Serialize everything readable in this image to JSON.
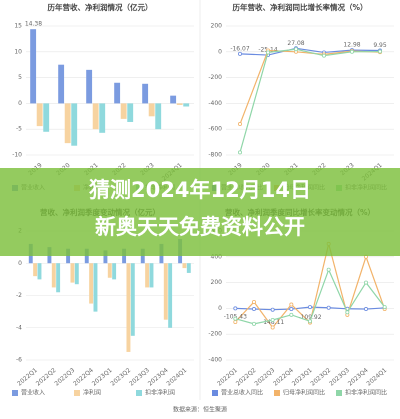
{
  "chart_data": [
    {
      "type": "bar",
      "title": "历年营收、净利润情况（亿元）",
      "categories": [
        "2019",
        "2020",
        "2021",
        "2022",
        "2023",
        "2024Q1"
      ],
      "series": [
        {
          "name": "营业收入",
          "color": "#7b9be0",
          "values": [
            14.38,
            7.5,
            6.5,
            4,
            3.8,
            1.5
          ],
          "value_labels": [
            "14.38",
            null,
            null,
            null,
            null,
            null
          ]
        },
        {
          "name": "净利润",
          "color": "#f7d3a0",
          "values": [
            -4.4,
            -7.7,
            -5,
            -3,
            -2.5,
            -0.3
          ]
        },
        {
          "name": "扣非净利润",
          "color": "#8fd9dd",
          "values": [
            -5.5,
            -8.2,
            -5.7,
            -3.6,
            -5,
            -0.6
          ]
        }
      ],
      "ylim": [
        -10,
        15
      ],
      "yticks": [
        15,
        10,
        5,
        0,
        -5,
        -10
      ],
      "grid": true
    },
    {
      "type": "line",
      "title": "历年营收、净利润同比增长率情况（%）",
      "categories": [
        "2019",
        "2020",
        "2021",
        "2022",
        "2023",
        "2024Q1"
      ],
      "series": [
        {
          "name": "营业总收入同比",
          "color": "#6a8be0",
          "values": [
            -16.07,
            -25.14,
            27.08,
            -5,
            12.98,
            9.95
          ],
          "value_labels": [
            "-16.07",
            "-25.14",
            "27.08",
            null,
            "12.98",
            "9.95"
          ]
        },
        {
          "name": "归母净利润同比",
          "color": "#f2b36a",
          "values": [
            -560,
            10,
            0,
            -20,
            5,
            -3
          ]
        },
        {
          "name": "扣非净利润同比",
          "color": "#8fd6a8",
          "values": [
            -780,
            -5,
            20,
            -30,
            0,
            2
          ]
        }
      ],
      "ylim": [
        -800,
        200
      ],
      "yticks": [
        200,
        0,
        -200,
        -400,
        -600,
        -800
      ],
      "grid": true
    },
    {
      "type": "bar",
      "title": "营收、净利润季度变动情况（亿元）",
      "categories": [
        "2022Q1",
        "2022Q2",
        "2022Q3",
        "2022Q4",
        "2023Q1",
        "2023Q2",
        "2023Q3",
        "2023Q4",
        "2024Q1"
      ],
      "series": [
        {
          "name": "营业收入",
          "color": "#7b9be0",
          "values": [
            1.2,
            1,
            0.9,
            0.9,
            0.8,
            0.9,
            0.9,
            1.2,
            1.5
          ]
        },
        {
          "name": "净利润",
          "color": "#f7d3a0",
          "values": [
            -0.8,
            -1.5,
            -1.2,
            -2.5,
            -0.9,
            -5.5,
            -1.5,
            -3.5,
            -0.3
          ]
        },
        {
          "name": "扣非净利润",
          "color": "#8fd9dd",
          "values": [
            -1,
            -1.8,
            -1.3,
            -3,
            -1,
            -4.5,
            -1.5,
            -4,
            -0.6
          ]
        }
      ],
      "ylim": [
        -6,
        2
      ],
      "yticks": [
        2,
        0,
        -2,
        -4,
        -6
      ],
      "grid": true
    },
    {
      "type": "line",
      "title": "营收、净利润季度同比增长率变动情况（%）",
      "categories": [
        "2022Q1",
        "2022Q2",
        "2022Q3",
        "2022Q4",
        "2023Q1",
        "2023Q2",
        "2023Q3",
        "2023Q4",
        "2024Q1"
      ],
      "series": [
        {
          "name": "营业总收入同比",
          "color": "#6a8be0",
          "values": [
            0,
            -5,
            -10,
            -5,
            10,
            5,
            -3,
            -5,
            4
          ]
        },
        {
          "name": "归母净利润同比",
          "color": "#f2b36a",
          "values": [
            -105.43,
            50,
            -148.11,
            30,
            -109.92,
            500,
            -50,
            400,
            -5
          ],
          "value_labels": [
            "-105.43",
            null,
            "-148.11",
            null,
            "-109.92",
            null,
            null,
            null,
            null
          ]
        },
        {
          "name": "扣非净利润同比",
          "color": "#8fd6a8",
          "values": [
            -80,
            -120,
            -90,
            -50,
            -100,
            300,
            -30,
            200,
            10
          ]
        }
      ],
      "ylim": [
        -400,
        600
      ],
      "yticks": [
        600,
        400,
        200,
        0,
        -200,
        -400
      ],
      "grid": true
    }
  ],
  "overlay": {
    "lines": [
      "猜测2024年12月14日",
      "新奥天天免费资料公开"
    ]
  },
  "source": "数据来源：恒生聚源"
}
